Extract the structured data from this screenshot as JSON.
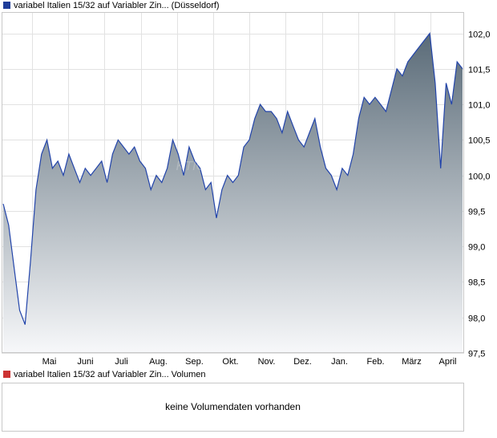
{
  "price_legend": {
    "label": "variabel Italien 15/32 auf Variabler Zin... (Düsseldorf)",
    "color": "#1f3d99"
  },
  "volume_legend": {
    "label": "variabel Italien 15/32 auf Variabler Zin... Volumen",
    "color": "#cc3333"
  },
  "volume_panel": {
    "message": "keine Volumendaten vorhanden"
  },
  "watermark": "KTION",
  "chart_data": {
    "type": "area",
    "ylim": [
      97.5,
      102.3
    ],
    "yticks": [
      "97,5",
      "98,0",
      "98,5",
      "99,0",
      "99,5",
      "100,0",
      "100,5",
      "101,0",
      "101,5",
      "102,0"
    ],
    "ytick_values": [
      97.5,
      98.0,
      98.5,
      99.0,
      99.5,
      100.0,
      100.5,
      101.0,
      101.5,
      102.0
    ],
    "xticks": [
      "Mai",
      "Juni",
      "Juli",
      "Aug.",
      "Sep.",
      "Okt.",
      "Nov.",
      "Dez.",
      "Jan.",
      "Feb.",
      "März",
      "April"
    ],
    "grid": true,
    "line_color": "#2244aa",
    "fill_top_color": "#5a6b78",
    "fill_bottom_color": "#f7f8fa",
    "series": [
      {
        "values": [
          99.6,
          99.3,
          98.7,
          98.1,
          97.9,
          98.8,
          99.8,
          100.3,
          100.5,
          100.1,
          100.2,
          100.0,
          100.3,
          100.1,
          99.9,
          100.1,
          100.0,
          100.1,
          100.2,
          99.9,
          100.3,
          100.5,
          100.4,
          100.3,
          100.4,
          100.2,
          100.1,
          99.8,
          100.0,
          99.9,
          100.1,
          100.5,
          100.3,
          100.0,
          100.4,
          100.2,
          100.1,
          99.8,
          99.9,
          99.4,
          99.8,
          100.0,
          99.9,
          100.0,
          100.4,
          100.5,
          100.8,
          101.0,
          100.9,
          100.9,
          100.8,
          100.6,
          100.9,
          100.7,
          100.5,
          100.4,
          100.6,
          100.8,
          100.4,
          100.1,
          100.0,
          99.8,
          100.1,
          100.0,
          100.3,
          100.8,
          101.1,
          101.0,
          101.1,
          101.0,
          100.9,
          101.2,
          101.5,
          101.4,
          101.6,
          101.7,
          101.8,
          101.9,
          102.0,
          101.3,
          100.1,
          101.3,
          101.0,
          101.6,
          101.5
        ]
      }
    ]
  }
}
